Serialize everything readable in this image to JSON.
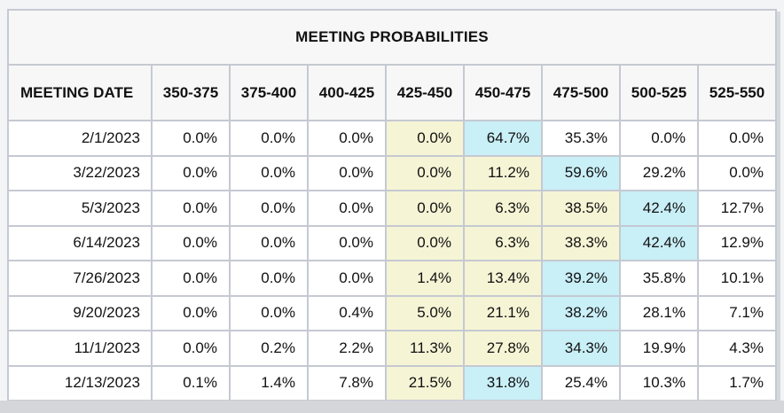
{
  "title": "MEETING PROBABILITIES",
  "columns": [
    "MEETING DATE",
    "350-375",
    "375-400",
    "400-425",
    "425-450",
    "450-475",
    "475-500",
    "500-525",
    "525-550"
  ],
  "rows": [
    {
      "date": "2/1/2023",
      "values": [
        "0.0%",
        "0.0%",
        "0.0%",
        "0.0%",
        "64.7%",
        "35.3%",
        "0.0%",
        "0.0%"
      ],
      "highlights": [
        "",
        "",
        "",
        "yellow",
        "cyan",
        "",
        "",
        ""
      ]
    },
    {
      "date": "3/22/2023",
      "values": [
        "0.0%",
        "0.0%",
        "0.0%",
        "0.0%",
        "11.2%",
        "59.6%",
        "29.2%",
        "0.0%"
      ],
      "highlights": [
        "",
        "",
        "",
        "yellow",
        "yellow",
        "cyan",
        "",
        ""
      ]
    },
    {
      "date": "5/3/2023",
      "values": [
        "0.0%",
        "0.0%",
        "0.0%",
        "0.0%",
        "6.3%",
        "38.5%",
        "42.4%",
        "12.7%"
      ],
      "highlights": [
        "",
        "",
        "",
        "yellow",
        "yellow",
        "yellow",
        "cyan",
        ""
      ]
    },
    {
      "date": "6/14/2023",
      "values": [
        "0.0%",
        "0.0%",
        "0.0%",
        "0.0%",
        "6.3%",
        "38.3%",
        "42.4%",
        "12.9%"
      ],
      "highlights": [
        "",
        "",
        "",
        "yellow",
        "yellow",
        "yellow",
        "cyan",
        ""
      ]
    },
    {
      "date": "7/26/2023",
      "values": [
        "0.0%",
        "0.0%",
        "0.0%",
        "1.4%",
        "13.4%",
        "39.2%",
        "35.8%",
        "10.1%"
      ],
      "highlights": [
        "",
        "",
        "",
        "yellow",
        "yellow",
        "cyan",
        "",
        ""
      ]
    },
    {
      "date": "9/20/2023",
      "values": [
        "0.0%",
        "0.0%",
        "0.4%",
        "5.0%",
        "21.1%",
        "38.2%",
        "28.1%",
        "7.1%"
      ],
      "highlights": [
        "",
        "",
        "",
        "yellow",
        "yellow",
        "cyan",
        "",
        ""
      ]
    },
    {
      "date": "11/1/2023",
      "values": [
        "0.0%",
        "0.2%",
        "2.2%",
        "11.3%",
        "27.8%",
        "34.3%",
        "19.9%",
        "4.3%"
      ],
      "highlights": [
        "",
        "",
        "",
        "yellow",
        "yellow",
        "cyan",
        "",
        ""
      ]
    },
    {
      "date": "12/13/2023",
      "values": [
        "0.1%",
        "1.4%",
        "7.8%",
        "21.5%",
        "31.8%",
        "25.4%",
        "10.3%",
        "1.7%"
      ],
      "highlights": [
        "",
        "",
        "",
        "yellow",
        "cyan",
        "",
        "",
        ""
      ]
    }
  ],
  "colors": {
    "highlight_yellow": "#F5F4D5",
    "highlight_cyan": "#C9EFF7",
    "header_background": "#F7F7F7",
    "grid_border": "#C5C9D2"
  }
}
